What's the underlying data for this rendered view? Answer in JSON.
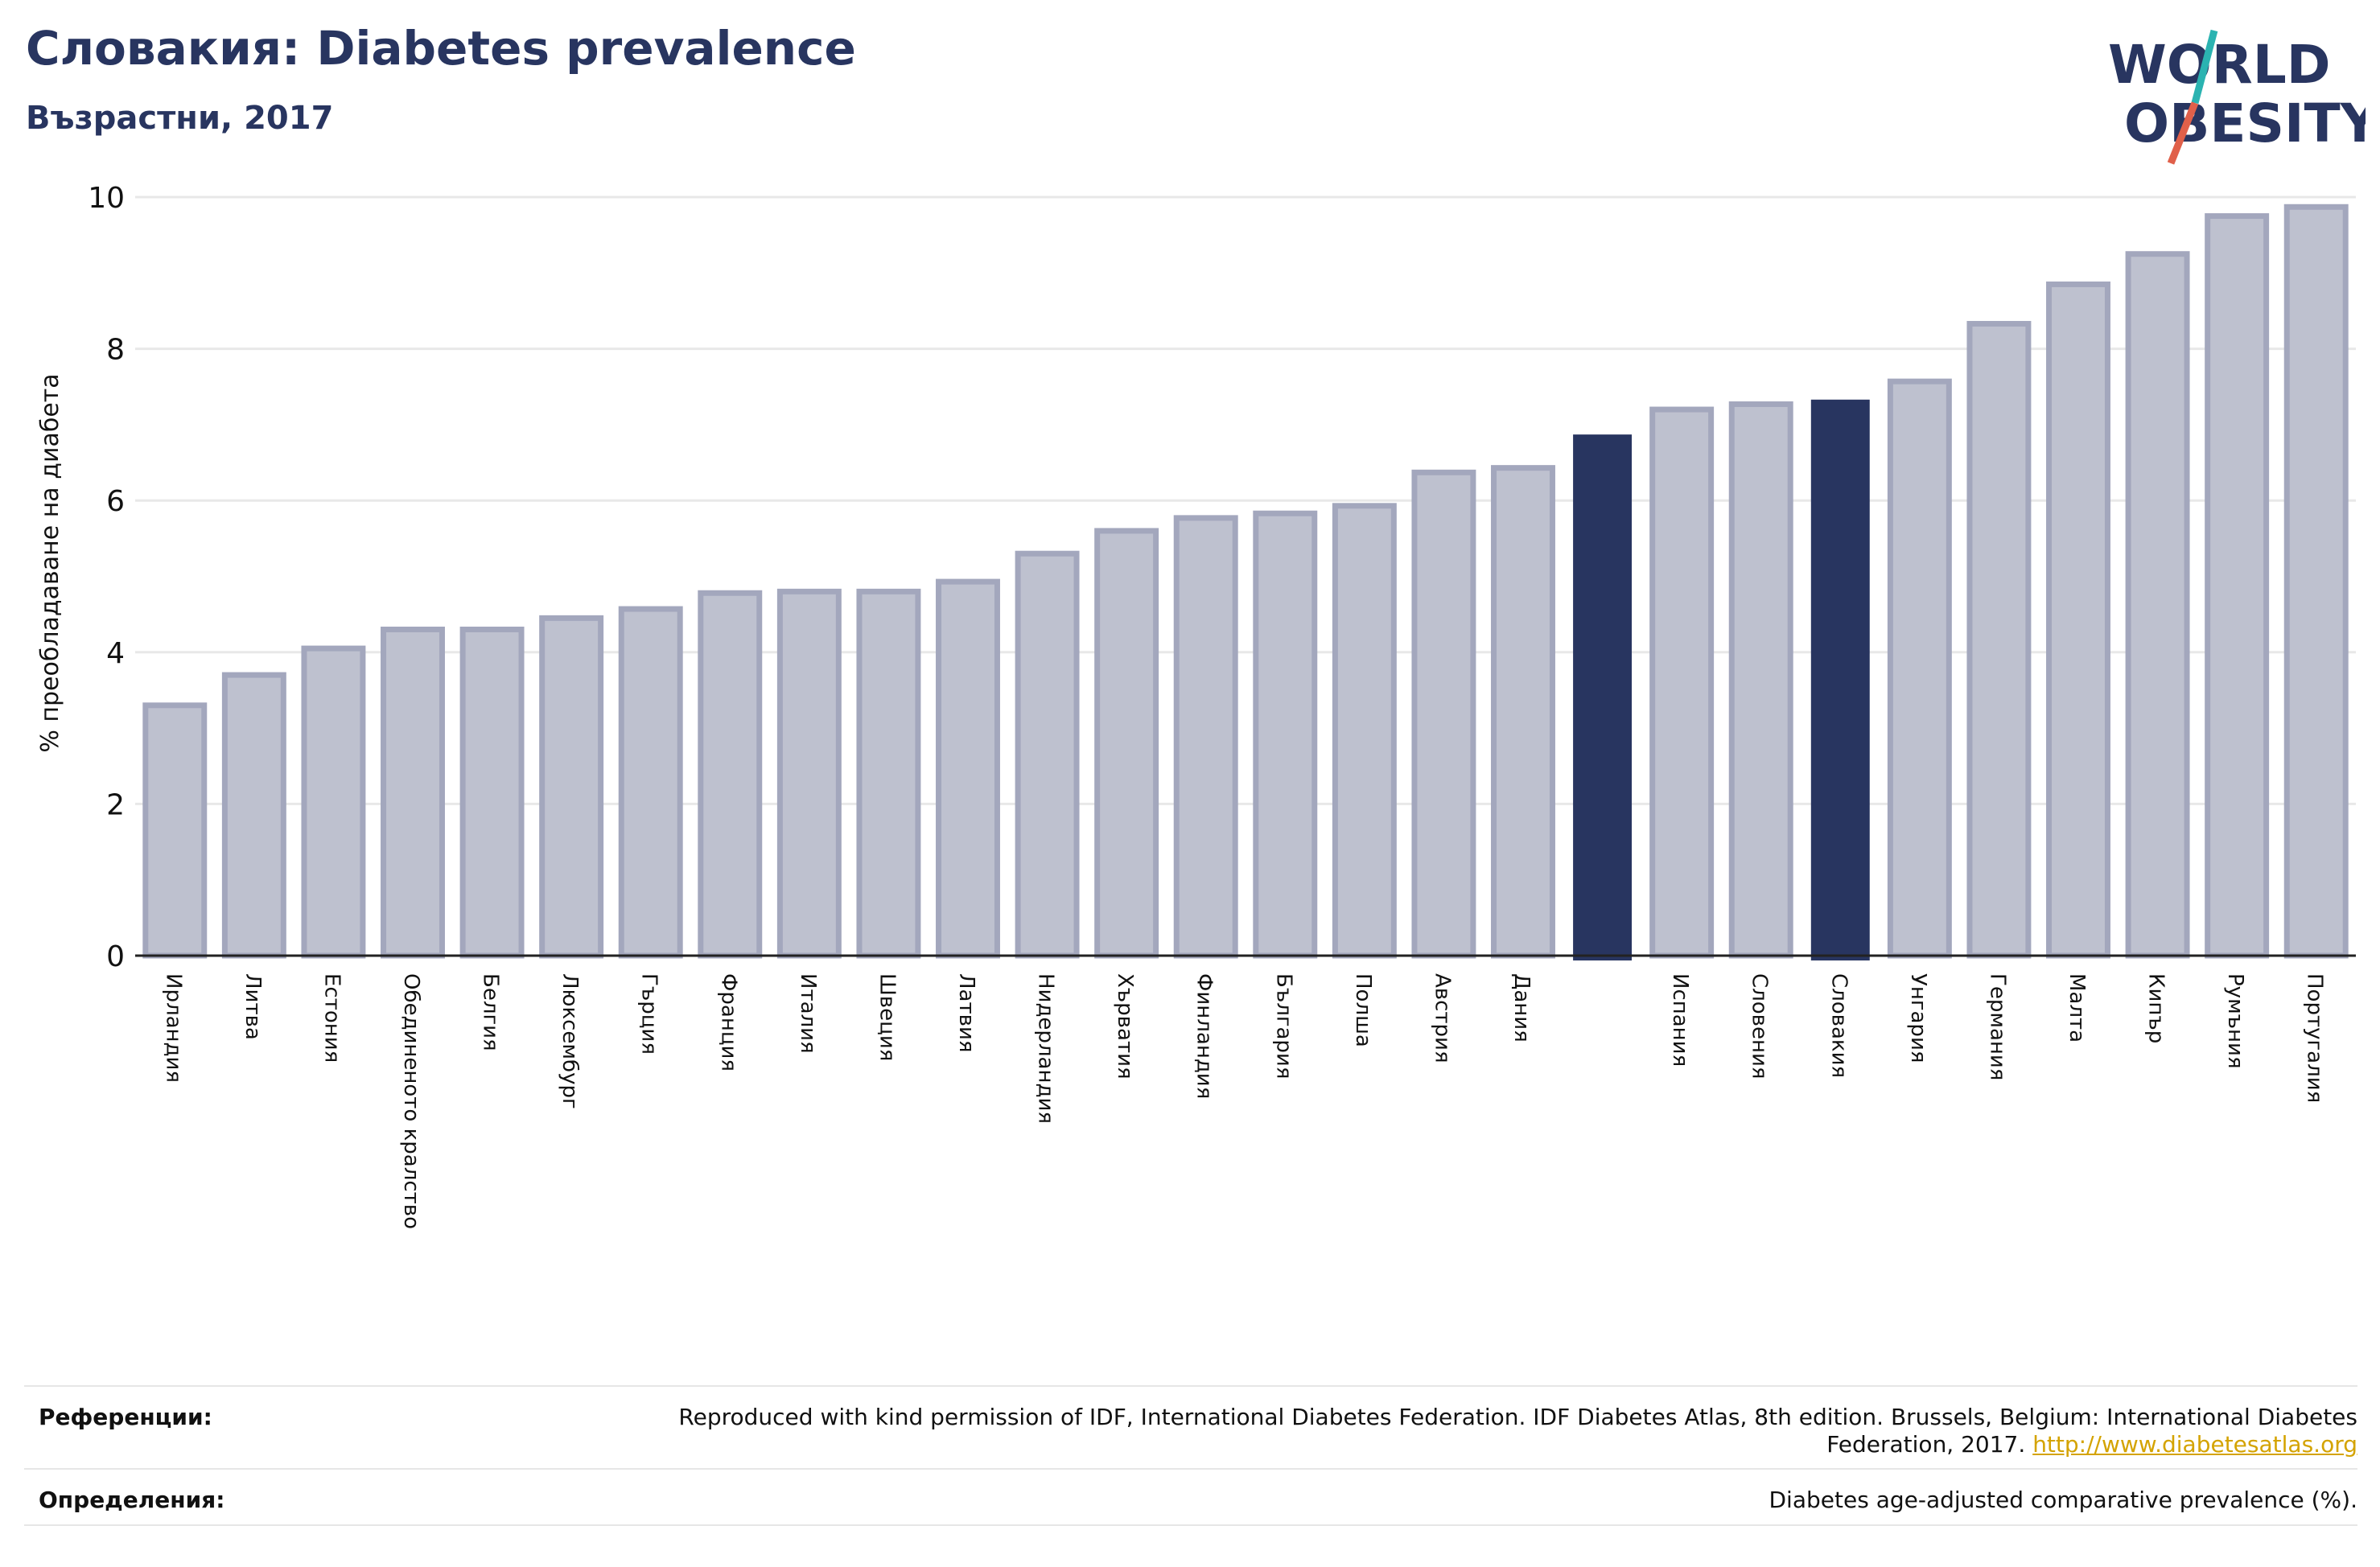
{
  "header": {
    "title": "Словакия: Diabetes prevalence",
    "subtitle": "Възрастни, 2017"
  },
  "logo": {
    "line1": "WORLD",
    "line2": "OBESITY",
    "text_color": "#283560",
    "slash_top_color": "#2bb3b1",
    "slash_bottom_color": "#e0604a"
  },
  "chart_data": {
    "type": "bar",
    "title": "Словакия: Diabetes prevalence",
    "subtitle": "Възрастни, 2017",
    "ylabel": "% преобладаване на диабета",
    "xlabel": "",
    "ylim": [
      0,
      10
    ],
    "yticks": [
      0,
      2,
      4,
      6,
      8,
      10
    ],
    "grid": true,
    "colors": {
      "default_fill": "#bec1cf",
      "default_stroke": "#a3a7bd",
      "highlight_fill": "#283560"
    },
    "categories": [
      "Ирландия",
      "Литва",
      "Естония",
      "Обединеното кралство",
      "Белгия",
      "Люксембург",
      "Гърция",
      "Франция",
      "Италия",
      "Швеция",
      "Латвия",
      "Нидерландия",
      "Хърватия",
      "Финландия",
      "България",
      "Полша",
      "Австрия",
      "Дания",
      "",
      "Испания",
      "Словения",
      "Словакия",
      "Унгария",
      "Германия",
      "Малта",
      "Кипър",
      "Румъния",
      "Португалия"
    ],
    "values": [
      3.3,
      3.7,
      4.05,
      4.3,
      4.3,
      4.45,
      4.57,
      4.78,
      4.8,
      4.8,
      4.93,
      5.3,
      5.6,
      5.77,
      5.83,
      5.93,
      6.37,
      6.43,
      6.87,
      7.2,
      7.27,
      7.33,
      7.57,
      8.33,
      8.85,
      9.25,
      9.75,
      9.87
    ],
    "highlight": [
      18,
      21
    ]
  },
  "footer": {
    "references_label": "Референции:",
    "references_text": "Reproduced with kind permission of IDF, International Diabetes Federation. IDF Diabetes Atlas, 8th edition. Brussels, Belgium: International Diabetes Federation, 2017.",
    "references_link": "http://www.diabetesatlas.org",
    "definitions_label": "Определения:",
    "definitions_text": "Diabetes age-adjusted comparative prevalence (%)."
  }
}
